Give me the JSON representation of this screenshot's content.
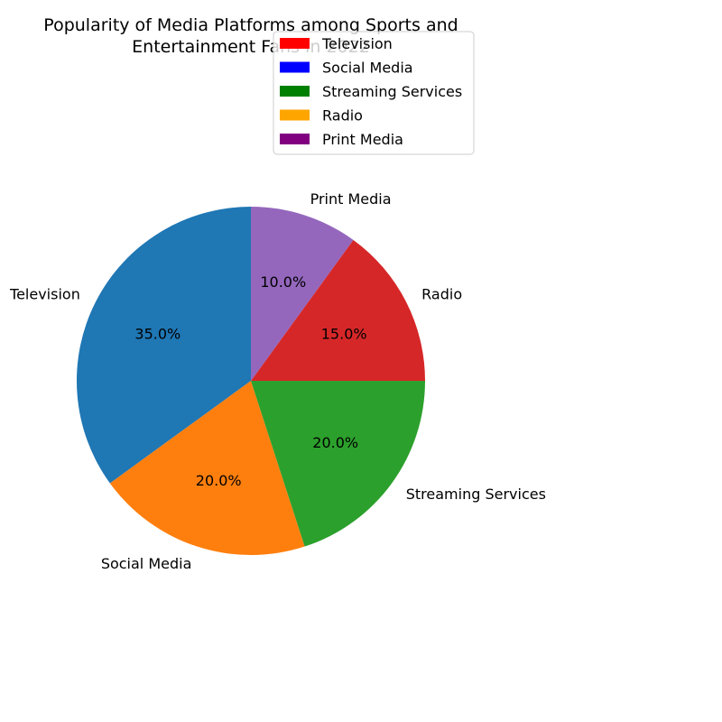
{
  "chart_data": {
    "type": "pie",
    "title_lines": [
      "Popularity of Media Platforms among Sports and",
      "Entertainment Fans in 2022"
    ],
    "categories": [
      "Television",
      "Social Media",
      "Streaming Services",
      "Radio",
      "Print Media"
    ],
    "values": [
      35,
      20,
      20,
      15,
      10
    ],
    "percent_labels": [
      "35.0%",
      "20.0%",
      "20.0%",
      "15.0%",
      "10.0%"
    ],
    "slice_colors": [
      "#1f77b4",
      "#ff7f0e",
      "#2ca02c",
      "#d62728",
      "#9467bd"
    ],
    "legend": {
      "placement": "upper-center",
      "entries": [
        "Television",
        "Social Media",
        "Streaming Services",
        "Radio",
        "Print Media"
      ],
      "colors": [
        "#ff0000",
        "#0000ff",
        "#008000",
        "#ffa500",
        "#800080"
      ]
    },
    "start_angle_deg": 90,
    "direction": "counterclockwise"
  }
}
